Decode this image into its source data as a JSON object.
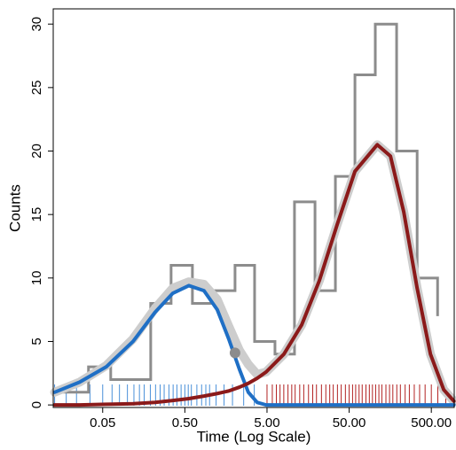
{
  "chart_data": {
    "type": "line",
    "xlabel": "Time (Log Scale)",
    "ylabel": "Counts",
    "xscale": "log",
    "xlim": [
      0.0125,
      950
    ],
    "ylim": [
      -0.2,
      31.2
    ],
    "xticks": [
      {
        "value": 0.05,
        "label": "0.05"
      },
      {
        "value": 0.5,
        "label": "0.50"
      },
      {
        "value": 5,
        "label": "5.00"
      },
      {
        "value": 50,
        "label": "50.00"
      },
      {
        "value": 500,
        "label": "500.00"
      }
    ],
    "yticks": [
      0,
      5,
      10,
      15,
      20,
      25,
      30
    ],
    "histogram": {
      "color": "#8c8c8c",
      "x": [
        0.013,
        0.0336,
        0.0626,
        0.192,
        0.34,
        0.618,
        1.1,
        2.04,
        3.53,
        6.25,
        10.8,
        19.2,
        34,
        58.8,
        104,
        189,
        336,
        596
      ],
      "values": [
        1,
        3,
        2,
        8,
        11,
        8,
        9,
        11,
        5,
        4,
        16,
        9,
        18,
        26,
        30,
        20,
        10,
        7
      ]
    },
    "x": [
      0.013,
      0.0262,
      0.0552,
      0.117,
      0.217,
      0.357,
      0.559,
      0.854,
      1.24,
      1.71,
      2.31,
      2.96,
      3.8,
      4.88,
      8.02,
      13.2,
      21.7,
      35.7,
      58.8,
      110,
      159,
      231,
      336,
      488,
      708,
      940
    ],
    "series": [
      {
        "color": "#cdcdcd",
        "values": [
          1.0,
          1.8,
          3.1,
          5.2,
          7.6,
          9.2,
          9.7,
          9.5,
          8.3,
          6.2,
          4.3,
          3.2,
          2.4,
          2.6,
          4.0,
          6.3,
          9.8,
          14.2,
          18.4,
          20.5,
          19.6,
          15.2,
          9.2,
          4.0,
          1.2,
          0.3
        ]
      },
      {
        "color": "#1f6fc5",
        "values": [
          1.0,
          1.8,
          3.0,
          5.0,
          7.3,
          8.8,
          9.4,
          9.0,
          7.5,
          5.2,
          2.8,
          1.0,
          0.2,
          0,
          0,
          0,
          0,
          0,
          0,
          0,
          0,
          0,
          0,
          0,
          0,
          0
        ]
      },
      {
        "color": "#8b1a1a",
        "values": [
          0,
          0,
          0.05,
          0.1,
          0.2,
          0.35,
          0.5,
          0.7,
          0.9,
          1.1,
          1.4,
          1.7,
          2.1,
          2.6,
          4.0,
          6.3,
          9.8,
          14.2,
          18.4,
          20.5,
          19.6,
          15.2,
          9.2,
          4.0,
          1.2,
          0.3
        ]
      }
    ],
    "markers": {
      "color": "#8c8c8c",
      "x": [
        2.04
      ],
      "values": [
        4.1
      ]
    },
    "rugs": [
      {
        "color": "#4a90d9",
        "x": [
          0.013,
          0.018,
          0.024,
          0.035,
          0.05,
          0.065,
          0.08,
          0.1,
          0.12,
          0.14,
          0.16,
          0.19,
          0.22,
          0.25,
          0.28,
          0.32,
          0.36,
          0.4,
          0.45,
          0.5,
          0.55,
          0.6,
          0.7,
          0.8,
          0.9,
          1.0,
          1.2,
          1.5,
          1.9,
          2.6,
          3.5
        ]
      },
      {
        "color": "#b22222",
        "x": [
          5,
          5.8,
          6.5,
          7.2,
          8,
          9,
          10,
          11,
          12.5,
          14,
          16,
          18,
          20,
          23,
          26,
          29,
          32,
          36,
          40,
          45,
          50,
          55,
          60,
          66,
          72,
          80,
          88,
          96,
          105,
          115,
          125,
          140,
          155,
          170,
          190,
          210,
          240,
          270,
          310,
          360,
          420,
          500,
          600,
          750
        ]
      }
    ]
  }
}
